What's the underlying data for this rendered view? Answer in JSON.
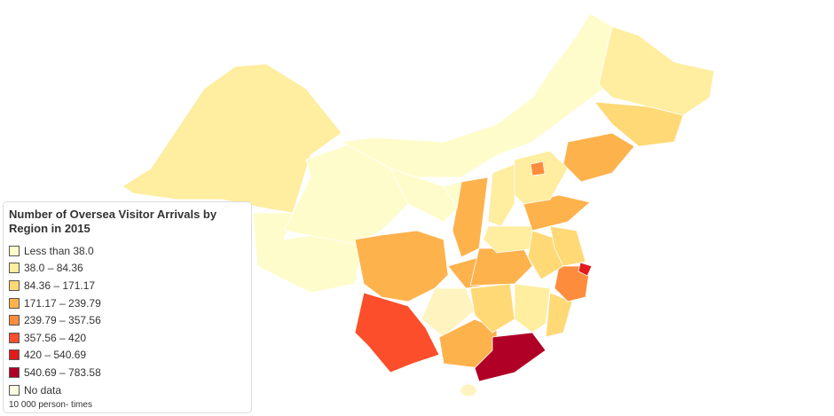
{
  "legend": {
    "title": "Number of Oversea Visitor Arrivals by Region in 2015",
    "items": [
      {
        "label": "Less than 38.0",
        "color": "#fffccc"
      },
      {
        "label": "38.0 – 84.36",
        "color": "#ffeda0"
      },
      {
        "label": "84.36 – 171.17",
        "color": "#fed976"
      },
      {
        "label": "171.17 – 239.79",
        "color": "#feb24c"
      },
      {
        "label": "239.79 – 357.56",
        "color": "#fd8d3c"
      },
      {
        "label": "357.56 – 420",
        "color": "#fc4e2a"
      },
      {
        "label": "420 – 540.69",
        "color": "#e31a1c"
      },
      {
        "label": "540.69 – 783.58",
        "color": "#b10026"
      },
      {
        "label": "No data",
        "color": "#ffffe5"
      }
    ],
    "note": "10 000 person- times"
  }
}
